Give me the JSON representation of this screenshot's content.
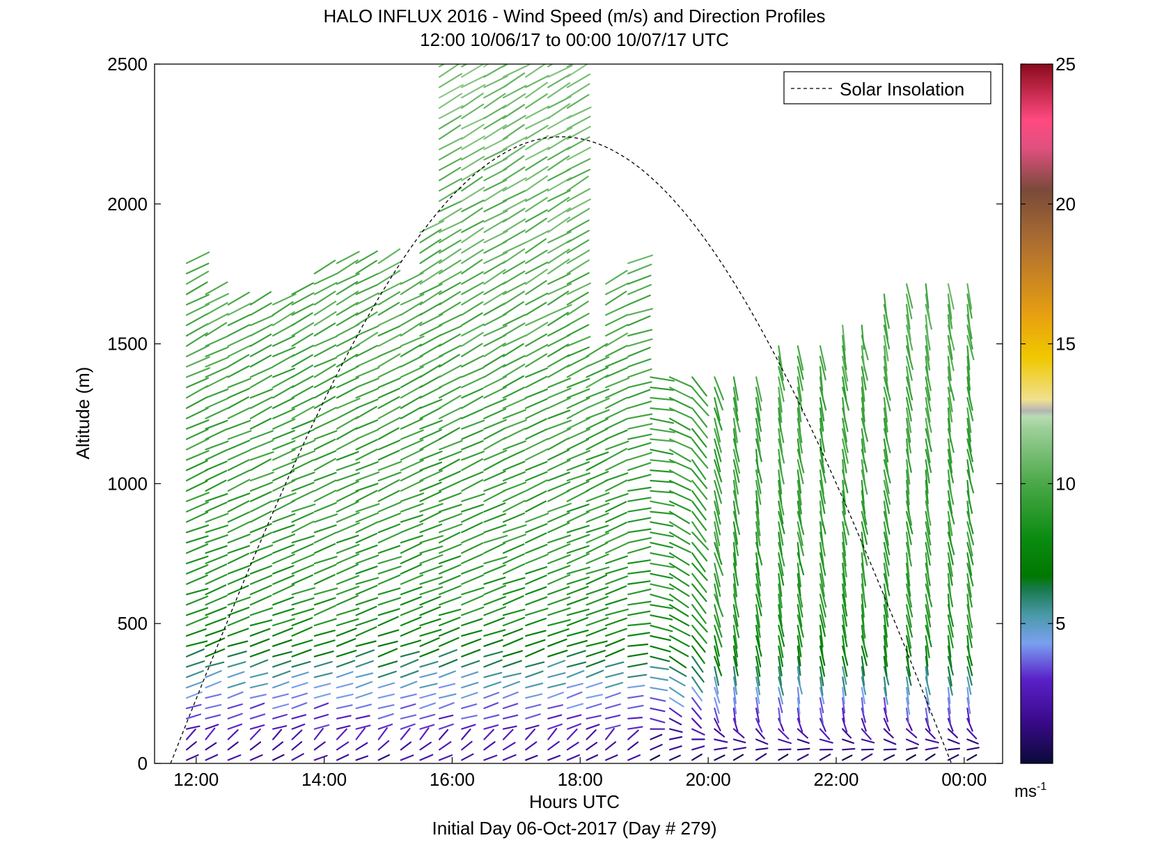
{
  "chart_data": {
    "type": "wind-barb profile (quiver)",
    "title_line1": "HALO INFLUX 2016 - Wind Speed (m/s) and Direction Profiles",
    "title_line2": "12:00 10/06/17 to 00:00 10/07/17  UTC",
    "xlabel": "Hours UTC",
    "ylabel": "Altitude (m)",
    "footer": "Initial Day 06-Oct-2017 (Day # 279)",
    "xlim": [
      11.35,
      24.6
    ],
    "ylim": [
      0,
      2500
    ],
    "x_ticks": [
      {
        "value": 12,
        "label": "12:00"
      },
      {
        "value": 14,
        "label": "14:00"
      },
      {
        "value": 16,
        "label": "16:00"
      },
      {
        "value": 18,
        "label": "18:00"
      },
      {
        "value": 20,
        "label": "20:00"
      },
      {
        "value": 22,
        "label": "22:00"
      },
      {
        "value": 24,
        "label": "00:00"
      }
    ],
    "y_ticks": [
      0,
      500,
      1000,
      1500,
      2000,
      2500
    ],
    "legend": {
      "label": "Solar Insolation",
      "placement": "top-right",
      "line_style": "dashed",
      "color": "#000000"
    },
    "solar_insolation": {
      "start_hour": 11.6,
      "peak_hour": 17.7,
      "peak_alt": 2240,
      "end_hour": 23.8
    },
    "colorbar": {
      "min": 0,
      "max": 25,
      "ticks": [
        5,
        10,
        15,
        20,
        25
      ],
      "unit_label": "ms",
      "unit_exponent": "-1",
      "stops": [
        {
          "value": 0,
          "color": "#0a0a3a"
        },
        {
          "value": 1.5,
          "color": "#3a0a8a"
        },
        {
          "value": 3,
          "color": "#5a20c8"
        },
        {
          "value": 4.3,
          "color": "#7aa0f0"
        },
        {
          "value": 5.3,
          "color": "#4a9aa8"
        },
        {
          "value": 6.2,
          "color": "#1a7a50"
        },
        {
          "value": 6.7,
          "color": "#007800"
        },
        {
          "value": 8,
          "color": "#0a8a10"
        },
        {
          "value": 10,
          "color": "#4aa848"
        },
        {
          "value": 12,
          "color": "#9ed09a"
        },
        {
          "value": 12.4,
          "color": "#b8dcb4"
        },
        {
          "value": 12.6,
          "color": "#b4b4b4"
        },
        {
          "value": 13,
          "color": "#f0e090"
        },
        {
          "value": 14.5,
          "color": "#f0c800"
        },
        {
          "value": 16,
          "color": "#e8a010"
        },
        {
          "value": 18.5,
          "color": "#b07030"
        },
        {
          "value": 20.5,
          "color": "#7a4a3a"
        },
        {
          "value": 22,
          "color": "#e05080"
        },
        {
          "value": 23,
          "color": "#ff4a80"
        },
        {
          "value": 25,
          "color": "#8a0a1a"
        }
      ]
    },
    "profile_hours": [
      11.85,
      12.15,
      12.5,
      12.85,
      13.2,
      13.5,
      13.85,
      14.2,
      14.5,
      14.85,
      15.2,
      15.5,
      15.8,
      16.15,
      16.5,
      16.8,
      17.15,
      17.5,
      17.8,
      18.1,
      18.4,
      18.75,
      19.1,
      19.4,
      19.75,
      20.1,
      20.4,
      20.75,
      21.1,
      21.4,
      21.75,
      22.1,
      22.4,
      22.75,
      23.1,
      23.4,
      23.75,
      24.05
    ],
    "profile_tops": [
      1820,
      1700,
      1660,
      1650,
      1660,
      1710,
      1760,
      1790,
      1790,
      1800,
      1740,
      1900,
      2500,
      2500,
      2500,
      2500,
      2500,
      2500,
      2500,
      1480,
      2500,
      2100,
      1410,
      1400,
      1400,
      1410,
      1410,
      1410,
      1500,
      1500,
      1500,
      1580,
      1580,
      1700,
      1750,
      1740,
      1740,
      1750
    ],
    "gap_below": [
      0,
      0,
      0,
      0,
      0,
      0,
      0,
      0,
      0,
      0,
      0,
      0,
      0,
      0,
      0,
      0,
      0,
      0,
      0,
      1750,
      1750,
      1800,
      0,
      0,
      0,
      0,
      0,
      0,
      0,
      0,
      0,
      0,
      0,
      0,
      0,
      0,
      0,
      0
    ],
    "profile_step_m": 37,
    "speed_profile_m_s": [
      {
        "alt": 0,
        "speed": 1.8
      },
      {
        "alt": 80,
        "speed": 2.5
      },
      {
        "alt": 180,
        "speed": 3.4
      },
      {
        "alt": 320,
        "speed": 5.5
      },
      {
        "alt": 500,
        "speed": 8.5
      },
      {
        "alt": 800,
        "speed": 9.2
      },
      {
        "alt": 1300,
        "speed": 9.6
      },
      {
        "alt": 1800,
        "speed": 10.4
      },
      {
        "alt": 2500,
        "speed": 11.2
      }
    ],
    "direction_note_deg": {
      "day_upper": 60,
      "day_lower": 75,
      "evening_upper": 170,
      "surface": 30
    }
  }
}
